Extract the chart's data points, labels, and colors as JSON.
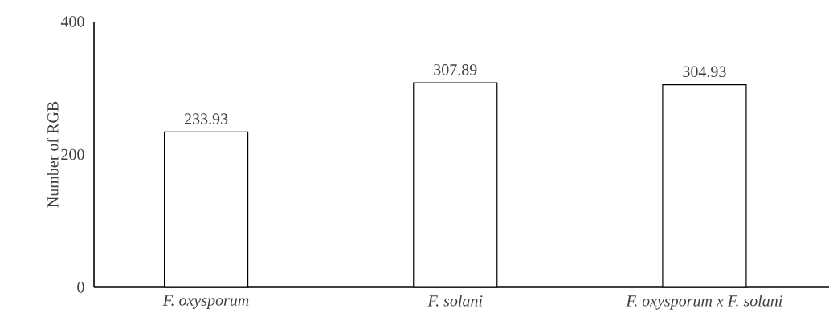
{
  "chart_data": {
    "type": "bar",
    "ylabel": "Number of RGB",
    "categories": [
      "F. oxysporum",
      "F. solani",
      "F. oxysporum x F. solani"
    ],
    "values": [
      233.93,
      307.89,
      304.93
    ],
    "color": "#ffffff",
    "ylim": [
      0,
      400
    ],
    "yticks": [
      0,
      200,
      400
    ],
    "data_labels": true
  }
}
